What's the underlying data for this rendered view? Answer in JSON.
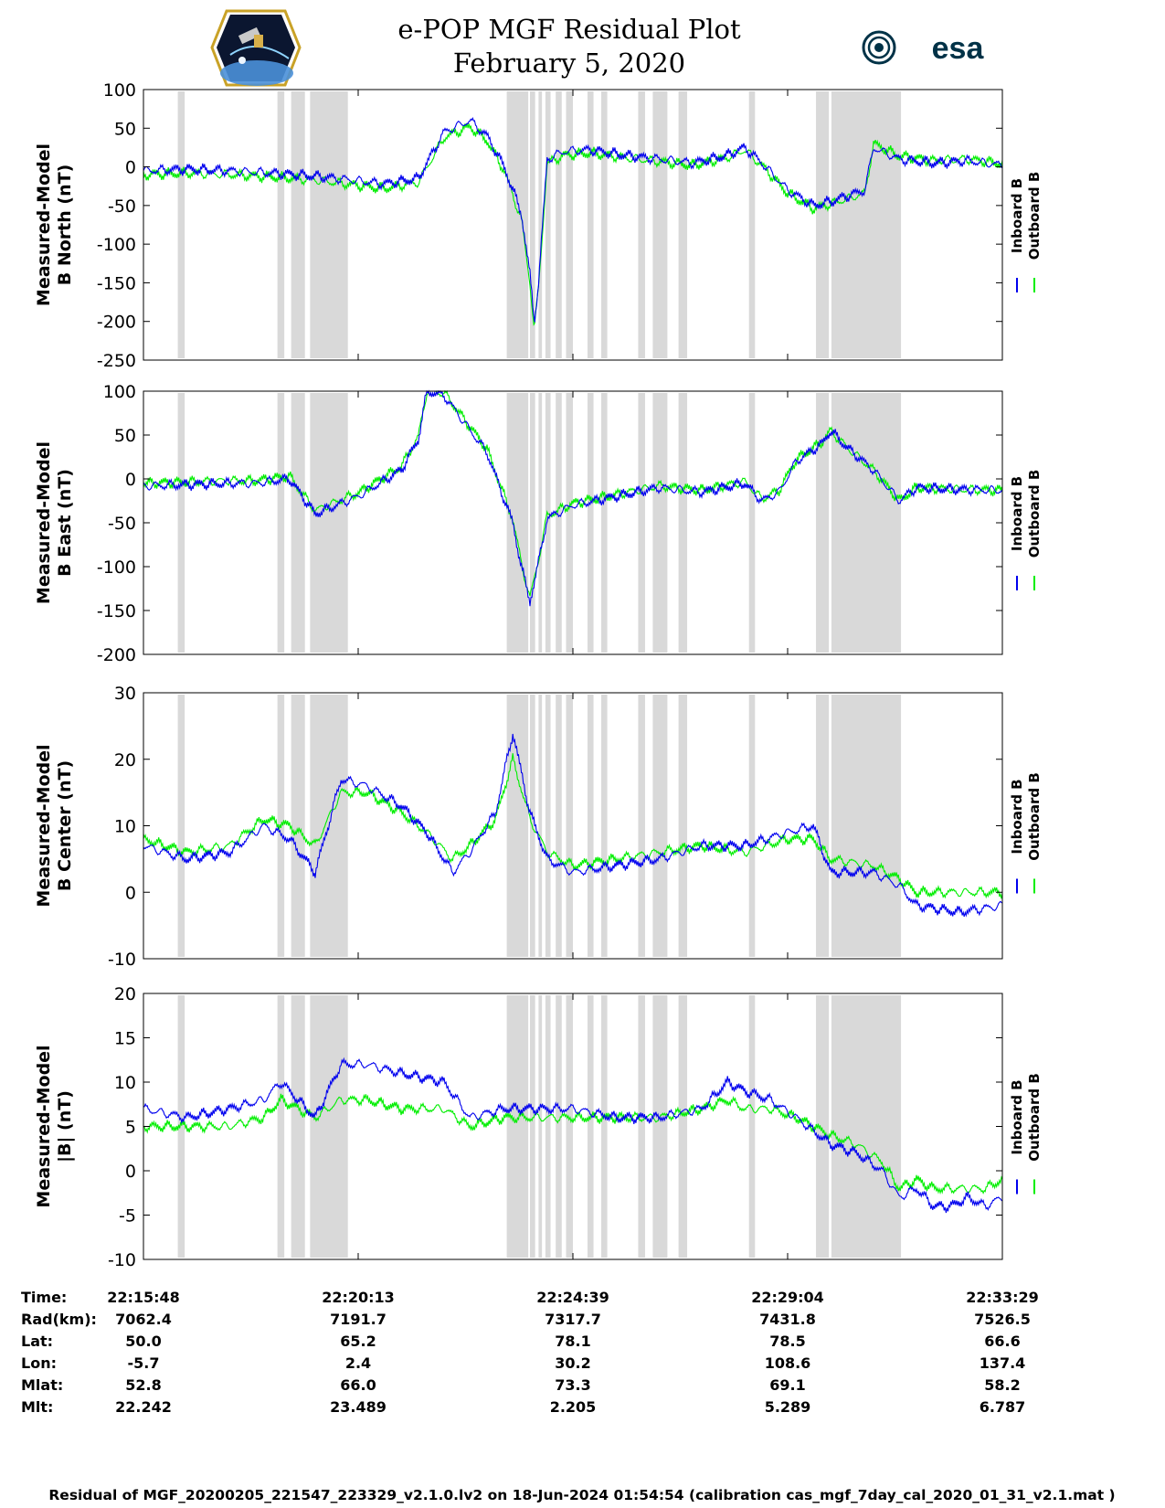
{
  "header": {
    "title_line1": "e-POP MGF Residual Plot",
    "title_line2": "February 5, 2020",
    "left_logo": "cassiope-mission-patch",
    "right_logo_text": "esa"
  },
  "colors": {
    "inboard": "#0000ee",
    "outboard": "#00ee00",
    "gap_shade": "#d9d9d9"
  },
  "chart_data": [
    {
      "type": "line",
      "ylabel_line1": "Measured-Model",
      "ylabel_line2": "B North (nT)",
      "ylim": [
        -250,
        100
      ],
      "yticks": [
        100,
        50,
        0,
        -50,
        -100,
        -150,
        -200,
        -250
      ],
      "legend": [
        "Inboard B",
        "Outboard B"
      ],
      "series": [
        {
          "name": "Inboard B",
          "x": [
            0,
            0.05,
            0.1,
            0.15,
            0.2,
            0.25,
            0.28,
            0.32,
            0.35,
            0.38,
            0.4,
            0.42,
            0.44,
            0.45,
            0.455,
            0.46,
            0.47,
            0.49,
            0.52,
            0.56,
            0.6,
            0.64,
            0.68,
            0.7,
            0.72,
            0.75,
            0.78,
            0.8,
            0.84,
            0.85,
            0.88,
            0.92,
            0.96,
            1.0
          ],
          "y": [
            -5,
            -3,
            -5,
            -8,
            -12,
            -18,
            -22,
            -15,
            45,
            60,
            40,
            0,
            -60,
            -140,
            -200,
            -150,
            10,
            20,
            22,
            15,
            10,
            5,
            15,
            25,
            5,
            -30,
            -50,
            -45,
            -30,
            25,
            10,
            5,
            8,
            2
          ]
        },
        {
          "name": "Outboard B",
          "x": [
            0,
            0.05,
            0.1,
            0.15,
            0.2,
            0.25,
            0.28,
            0.32,
            0.35,
            0.38,
            0.4,
            0.42,
            0.44,
            0.45,
            0.455,
            0.46,
            0.47,
            0.49,
            0.52,
            0.56,
            0.6,
            0.64,
            0.68,
            0.7,
            0.72,
            0.75,
            0.78,
            0.8,
            0.84,
            0.85,
            0.88,
            0.92,
            0.96,
            1.0
          ],
          "y": [
            -10,
            -8,
            -10,
            -13,
            -17,
            -24,
            -28,
            -20,
            38,
            52,
            34,
            -5,
            -68,
            -150,
            -210,
            -158,
            5,
            15,
            18,
            12,
            7,
            2,
            12,
            22,
            2,
            -34,
            -54,
            -48,
            -34,
            30,
            14,
            8,
            10,
            4
          ]
        }
      ]
    },
    {
      "type": "line",
      "ylabel_line1": "Measured-Model",
      "ylabel_line2": "B East (nT)",
      "ylim": [
        -200,
        100
      ],
      "yticks": [
        100,
        50,
        0,
        -50,
        -100,
        -150,
        -200
      ],
      "legend": [
        "Inboard B",
        "Outboard B"
      ],
      "series": [
        {
          "name": "Inboard B",
          "x": [
            0,
            0.1,
            0.13,
            0.17,
            0.2,
            0.25,
            0.3,
            0.32,
            0.33,
            0.35,
            0.4,
            0.43,
            0.44,
            0.45,
            0.46,
            0.47,
            0.5,
            0.55,
            0.6,
            0.65,
            0.7,
            0.72,
            0.74,
            0.76,
            0.79,
            0.8,
            0.82,
            0.85,
            0.88,
            0.9,
            0.95,
            1.0
          ],
          "y": [
            -8,
            -5,
            -5,
            0,
            -40,
            -20,
            10,
            45,
            100,
            95,
            30,
            -50,
            -100,
            -140,
            -95,
            -45,
            -30,
            -20,
            -10,
            -15,
            -5,
            -25,
            -15,
            20,
            40,
            55,
            35,
            10,
            -25,
            -10,
            -12,
            -13
          ]
        },
        {
          "name": "Outboard B",
          "x": [
            0,
            0.1,
            0.13,
            0.17,
            0.2,
            0.25,
            0.3,
            0.32,
            0.33,
            0.35,
            0.4,
            0.43,
            0.44,
            0.45,
            0.46,
            0.47,
            0.5,
            0.55,
            0.6,
            0.65,
            0.7,
            0.72,
            0.74,
            0.76,
            0.79,
            0.8,
            0.82,
            0.85,
            0.88,
            0.9,
            0.95,
            1.0
          ],
          "y": [
            -5,
            -2,
            -2,
            3,
            -36,
            -16,
            14,
            48,
            100,
            98,
            34,
            -46,
            -96,
            -136,
            -92,
            -42,
            -28,
            -18,
            -8,
            -13,
            -3,
            -23,
            -13,
            22,
            42,
            55,
            35,
            10,
            -25,
            -10,
            -12,
            -13
          ]
        }
      ]
    },
    {
      "type": "line",
      "ylabel_line1": "Measured-Model",
      "ylabel_line2": "B Center (nT)",
      "ylim": [
        -10,
        30
      ],
      "yticks": [
        30,
        20,
        10,
        0,
        -10
      ],
      "legend": [
        "Inboard B",
        "Outboard B"
      ],
      "series": [
        {
          "name": "Inboard B",
          "x": [
            0,
            0.05,
            0.1,
            0.14,
            0.17,
            0.2,
            0.23,
            0.26,
            0.3,
            0.33,
            0.36,
            0.38,
            0.41,
            0.43,
            0.45,
            0.47,
            0.5,
            0.55,
            0.6,
            0.65,
            0.7,
            0.75,
            0.78,
            0.8,
            0.85,
            0.88,
            0.9,
            0.95,
            1.0
          ],
          "y": [
            7,
            5,
            6,
            10,
            8,
            3,
            17,
            16,
            13,
            9,
            3,
            6,
            12,
            24,
            12,
            5,
            3,
            4,
            5,
            7,
            7,
            9,
            10,
            3,
            3,
            1,
            -2,
            -3,
            -2
          ]
        },
        {
          "name": "Outboard B",
          "x": [
            0,
            0.05,
            0.1,
            0.14,
            0.17,
            0.2,
            0.23,
            0.26,
            0.3,
            0.33,
            0.36,
            0.38,
            0.41,
            0.43,
            0.45,
            0.47,
            0.5,
            0.55,
            0.6,
            0.65,
            0.7,
            0.75,
            0.78,
            0.8,
            0.85,
            0.88,
            0.9,
            0.95,
            1.0
          ],
          "y": [
            8,
            6,
            7,
            11,
            10,
            7,
            15,
            15,
            12,
            9,
            5,
            7,
            11,
            20,
            11,
            6,
            4,
            5,
            6,
            7,
            6,
            8,
            8,
            5,
            4,
            2,
            0,
            0,
            0
          ]
        }
      ]
    },
    {
      "type": "line",
      "ylabel_line1": "Measured-Model",
      "ylabel_line2": "|B| (nT)",
      "ylim": [
        -10,
        20
      ],
      "yticks": [
        20,
        15,
        10,
        5,
        0,
        -5,
        -10
      ],
      "legend": [
        "Inboard B",
        "Outboard B"
      ],
      "series": [
        {
          "name": "Inboard B",
          "x": [
            0,
            0.05,
            0.1,
            0.14,
            0.16,
            0.2,
            0.23,
            0.26,
            0.3,
            0.35,
            0.38,
            0.42,
            0.45,
            0.5,
            0.55,
            0.6,
            0.65,
            0.68,
            0.7,
            0.73,
            0.76,
            0.8,
            0.83,
            0.86,
            0.88,
            0.9,
            0.92,
            0.94,
            0.96,
            0.98,
            1.0
          ],
          "y": [
            7,
            6,
            7,
            8,
            10,
            6,
            12,
            12,
            11,
            10,
            6,
            7,
            7,
            7,
            6,
            6,
            7,
            10,
            9,
            8,
            6,
            3,
            2,
            0,
            -3,
            -2,
            -4,
            -4,
            -3,
            -4,
            -3
          ]
        },
        {
          "name": "Outboard B",
          "x": [
            0,
            0.05,
            0.1,
            0.14,
            0.16,
            0.2,
            0.23,
            0.26,
            0.3,
            0.35,
            0.38,
            0.42,
            0.45,
            0.5,
            0.55,
            0.6,
            0.65,
            0.68,
            0.7,
            0.73,
            0.76,
            0.8,
            0.83,
            0.86,
            0.88,
            0.9,
            0.92,
            0.94,
            0.96,
            0.98,
            1.0
          ],
          "y": [
            5,
            5,
            5,
            6,
            8,
            6,
            8,
            8,
            7,
            7,
            5,
            6,
            6,
            6,
            6,
            6,
            7,
            8,
            7,
            7,
            6,
            4,
            3,
            1,
            -2,
            -1,
            -2,
            -2,
            -2,
            -2,
            -1
          ]
        }
      ]
    }
  ],
  "gaps": [
    [
      0.04,
      0.048
    ],
    [
      0.156,
      0.164
    ],
    [
      0.172,
      0.188
    ],
    [
      0.194,
      0.238
    ],
    [
      0.423,
      0.448
    ],
    [
      0.45,
      0.456
    ],
    [
      0.46,
      0.464
    ],
    [
      0.468,
      0.474
    ],
    [
      0.48,
      0.487
    ],
    [
      0.492,
      0.5
    ],
    [
      0.517,
      0.524
    ],
    [
      0.533,
      0.54
    ],
    [
      0.576,
      0.584
    ],
    [
      0.593,
      0.61
    ],
    [
      0.623,
      0.633
    ],
    [
      0.705,
      0.712
    ],
    [
      0.783,
      0.798
    ],
    [
      0.801,
      0.882
    ]
  ],
  "time_axis": {
    "labels": [
      "Time:",
      "Rad(km):",
      "Lat:",
      "Lon:",
      "Mlat:",
      "Mlt:"
    ],
    "columns": [
      {
        "time": "22:15:48",
        "rad": "7062.4",
        "lat": "50.0",
        "lon": "-5.7",
        "mlat": "52.8",
        "mlt": "22.242"
      },
      {
        "time": "22:20:13",
        "rad": "7191.7",
        "lat": "65.2",
        "lon": "2.4",
        "mlat": "66.0",
        "mlt": "23.489"
      },
      {
        "time": "22:24:39",
        "rad": "7317.7",
        "lat": "78.1",
        "lon": "30.2",
        "mlat": "73.3",
        "mlt": "2.205"
      },
      {
        "time": "22:29:04",
        "rad": "7431.8",
        "lat": "78.5",
        "lon": "108.6",
        "mlat": "69.1",
        "mlt": "5.289"
      },
      {
        "time": "22:33:29",
        "rad": "7526.5",
        "lat": "66.6",
        "lon": "137.4",
        "mlat": "58.2",
        "mlt": "6.787"
      }
    ]
  },
  "footer": "Residual of MGF_20200205_221547_223329_v2.1.0.lv2 on 18-Jun-2024 01:54:54 (calibration cas_mgf_7day_cal_2020_01_31_v2.1.mat )"
}
